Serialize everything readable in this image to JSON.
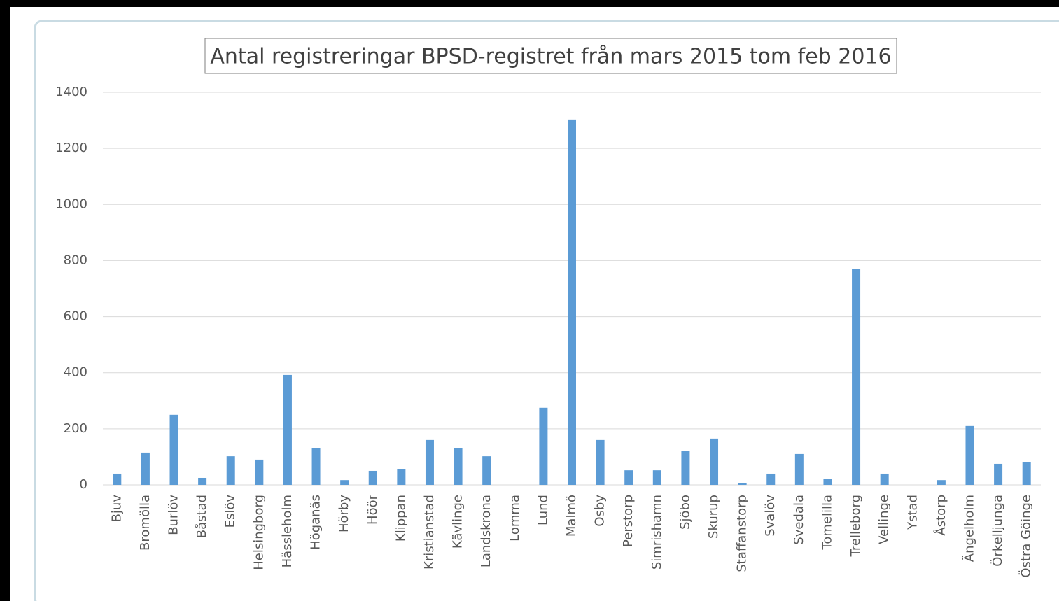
{
  "chart_data": {
    "type": "bar",
    "title": "Antal registreringar BPSD-registret från mars 2015 tom feb 2016",
    "categories": [
      "Bjuv",
      "Bromölla",
      "Burlöv",
      "Båstad",
      "Eslöv",
      "Helsingborg",
      "Hässleholm",
      "Höganäs",
      "Hörby",
      "Höör",
      "Klippan",
      "Kristianstad",
      "Kävlinge",
      "Landskrona",
      "Lomma",
      "Lund",
      "Malmö",
      "Osby",
      "Perstorp",
      "Simrishamn",
      "Sjöbo",
      "Skurup",
      "Staffanstorp",
      "Svalöv",
      "Svedala",
      "Tomelilla",
      "Trelleborg",
      "Vellinge",
      "Ystad",
      "Åstorp",
      "Ängelholm",
      "Örkelljunga",
      "Östra Göinge"
    ],
    "values": [
      40,
      115,
      250,
      25,
      102,
      90,
      392,
      132,
      17,
      50,
      57,
      160,
      132,
      102,
      0,
      275,
      1303,
      160,
      52,
      52,
      122,
      165,
      5,
      40,
      110,
      20,
      771,
      40,
      0,
      17,
      210,
      75,
      82
    ],
    "color": "#5b9bd5",
    "ylim": [
      0,
      1400
    ],
    "yticks": [
      0,
      200,
      400,
      600,
      800,
      1000,
      1200,
      1400
    ],
    "grid": true
  }
}
